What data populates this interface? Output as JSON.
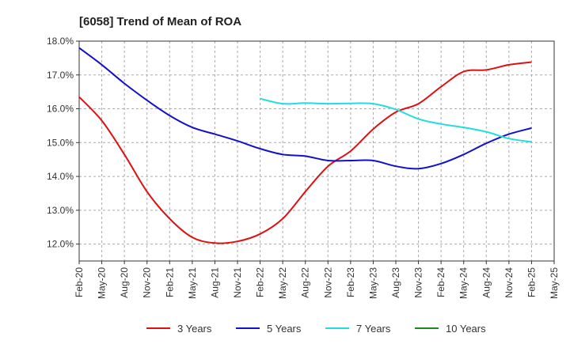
{
  "chart_data": {
    "type": "line",
    "title": "[6058]  Trend of Mean of ROA",
    "xlabel": "",
    "ylabel": "",
    "ylim": [
      11.5,
      18.0
    ],
    "yticks": [
      "12.0%",
      "13.0%",
      "14.0%",
      "15.0%",
      "16.0%",
      "17.0%",
      "18.0%"
    ],
    "ytick_values": [
      12.0,
      13.0,
      14.0,
      15.0,
      16.0,
      17.0,
      18.0
    ],
    "categories": [
      "Feb-20",
      "May-20",
      "Aug-20",
      "Nov-20",
      "Feb-21",
      "May-21",
      "Aug-21",
      "Nov-21",
      "Feb-22",
      "May-22",
      "Aug-22",
      "Nov-22",
      "Feb-23",
      "May-23",
      "Aug-23",
      "Nov-23",
      "Feb-24",
      "May-24",
      "Aug-24",
      "Nov-24",
      "Feb-25",
      "May-25"
    ],
    "grid": true,
    "legend_position": "bottom",
    "series": [
      {
        "name": "3 Years",
        "color": "#dd1111",
        "values": [
          16.35,
          15.65,
          14.65,
          13.55,
          12.75,
          12.2,
          12.03,
          12.08,
          12.3,
          12.75,
          13.55,
          14.3,
          14.75,
          15.4,
          15.9,
          16.15,
          16.65,
          17.1,
          17.15,
          17.3,
          17.38,
          null
        ]
      },
      {
        "name": "5 Years",
        "color": "#1111cc",
        "values": [
          17.8,
          17.3,
          16.75,
          16.25,
          15.8,
          15.45,
          15.25,
          15.05,
          14.82,
          14.65,
          14.6,
          14.47,
          14.47,
          14.47,
          14.3,
          14.23,
          14.38,
          14.65,
          14.98,
          15.25,
          15.43,
          null
        ]
      },
      {
        "name": "7 Years",
        "color": "#22dddd",
        "values": [
          null,
          null,
          null,
          null,
          null,
          null,
          null,
          null,
          16.3,
          16.15,
          16.17,
          16.15,
          16.16,
          16.15,
          15.98,
          15.7,
          15.55,
          15.45,
          15.32,
          15.12,
          15.02,
          null
        ]
      },
      {
        "name": "10 Years",
        "color": "#1a8a1a",
        "values": [
          null,
          null,
          null,
          null,
          null,
          null,
          null,
          null,
          null,
          null,
          null,
          null,
          null,
          null,
          null,
          null,
          null,
          null,
          null,
          null,
          null,
          null
        ]
      }
    ]
  }
}
